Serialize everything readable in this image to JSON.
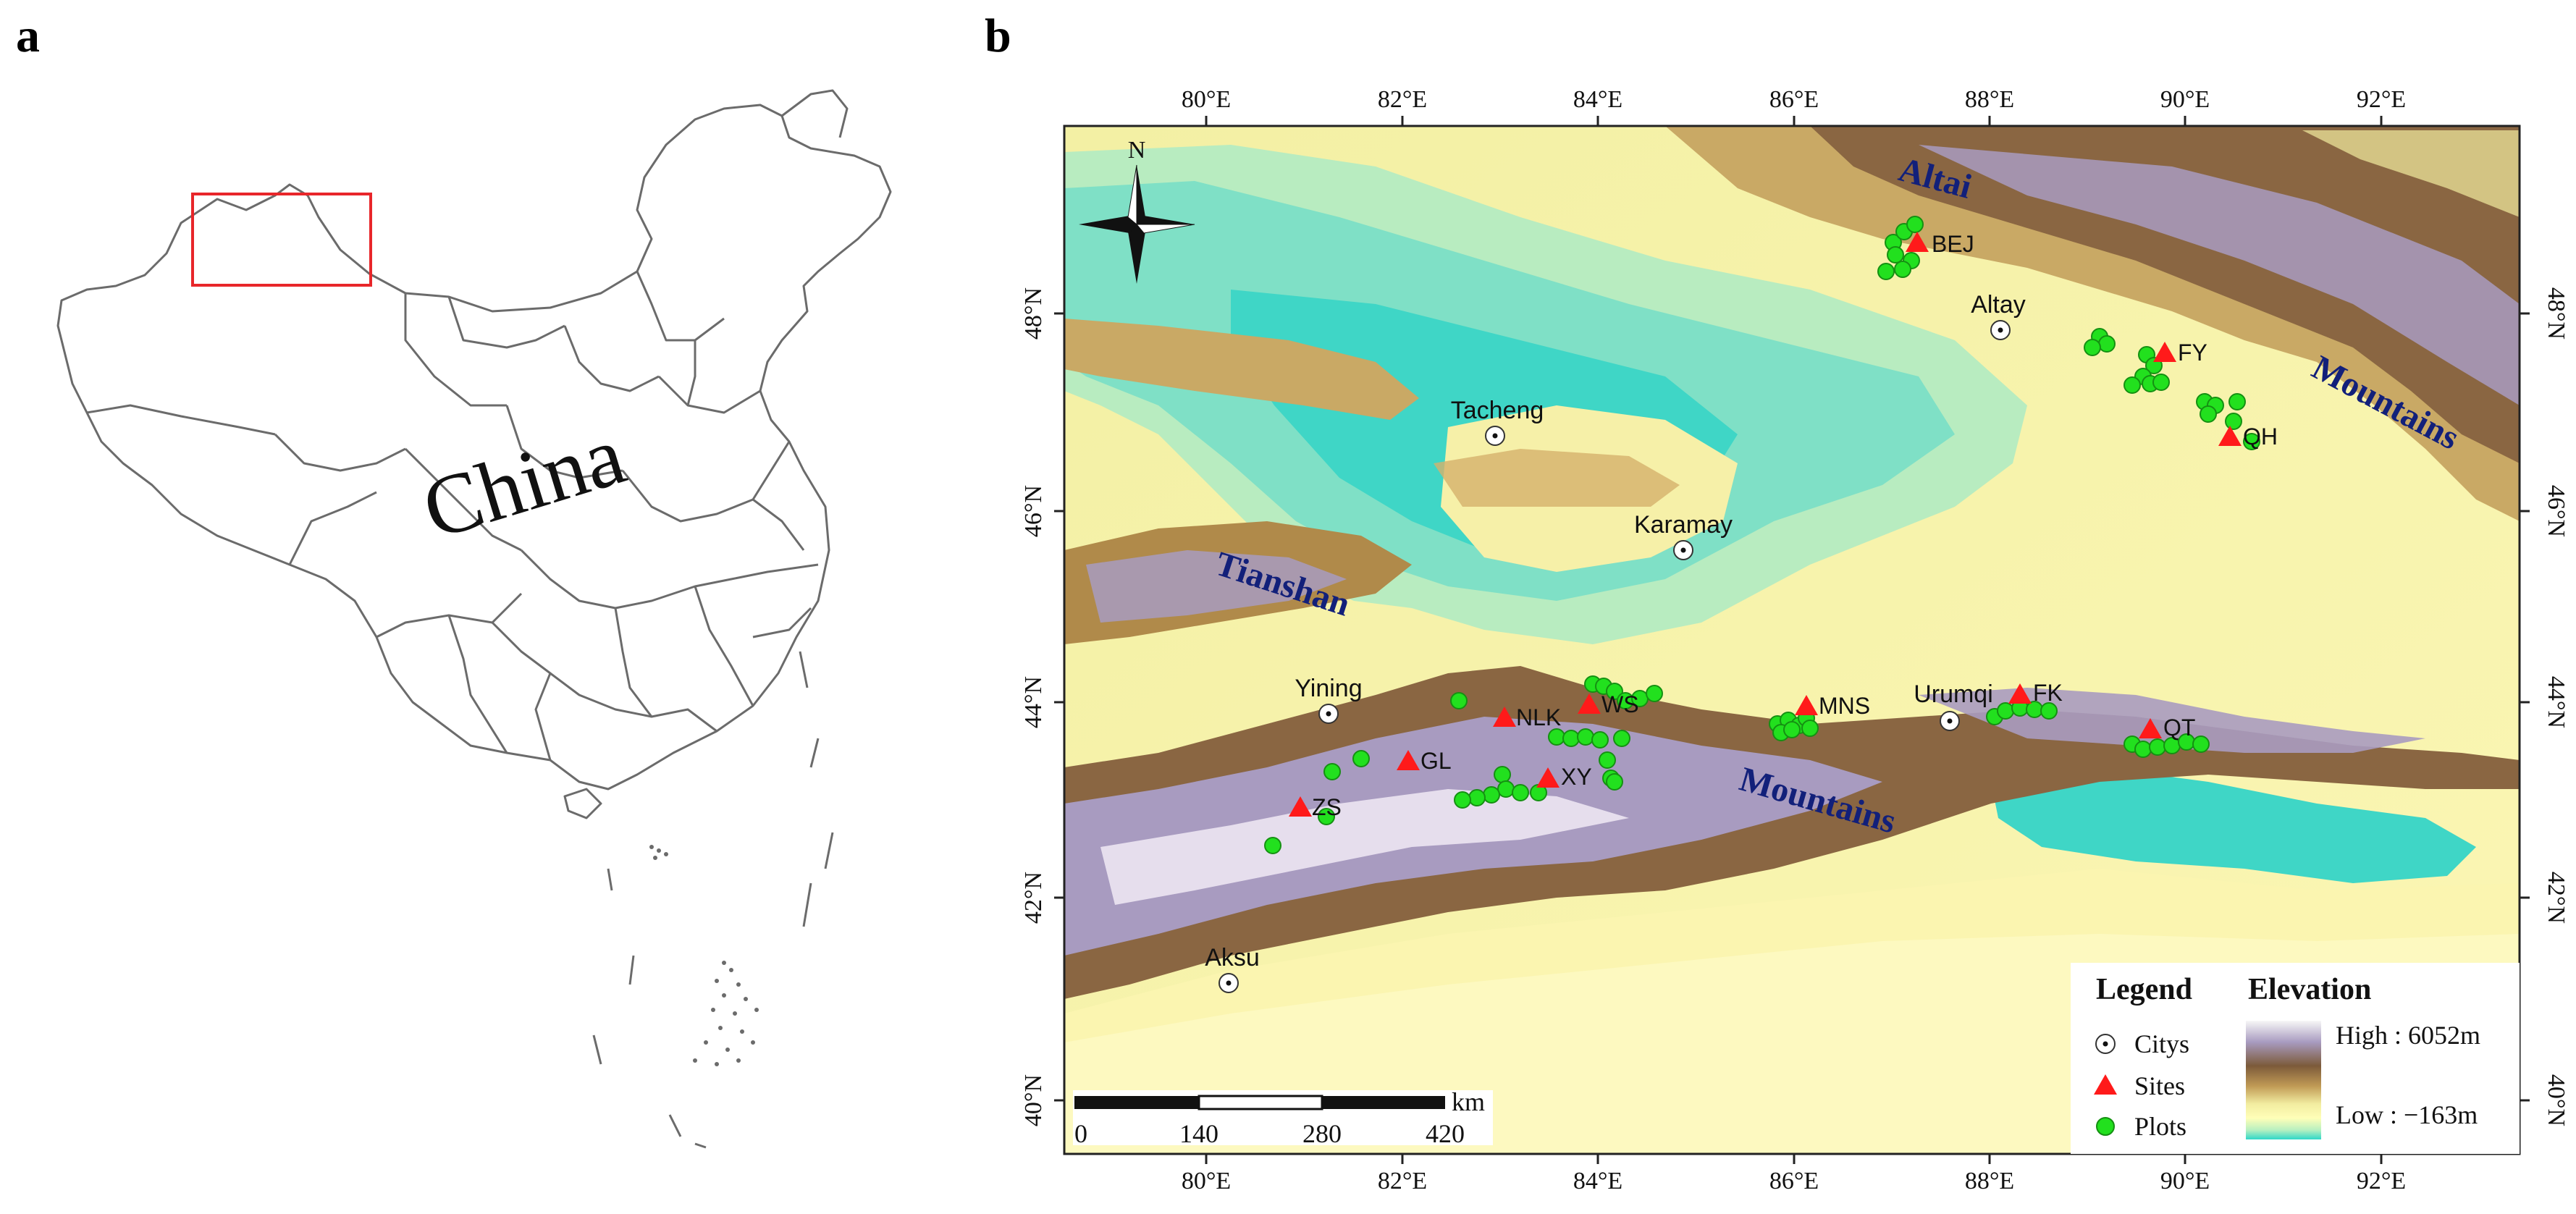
{
  "panels": {
    "a": {
      "letter": "a",
      "country_label": "China"
    },
    "b": {
      "letter": "b"
    }
  },
  "axes": {
    "lon_ticks": [
      "80°E",
      "82°E",
      "84°E",
      "86°E",
      "88°E",
      "90°E",
      "92°E"
    ],
    "lat_ticks": [
      "48°N",
      "46°N",
      "44°N",
      "42°N",
      "40°N"
    ]
  },
  "north_arrow": {
    "label": "N"
  },
  "mountain_ranges": [
    {
      "name": "altai",
      "text": "Altai"
    },
    {
      "name": "altai-mountains",
      "text": "Mountains"
    },
    {
      "name": "tianshan",
      "text": "Tianshan"
    },
    {
      "name": "tianshan-mountains",
      "text": "Mountains"
    }
  ],
  "cities": [
    "Altay",
    "Tacheng",
    "Karamay",
    "Yining",
    "Urumqi",
    "Aksu"
  ],
  "sites": [
    "BEJ",
    "FY",
    "QH",
    "WS",
    "NLK",
    "MNS",
    "FK",
    "QT",
    "GL",
    "XY",
    "ZS"
  ],
  "scale_bar": {
    "unit": "km",
    "labels": [
      "0",
      "140",
      "280",
      "420"
    ]
  },
  "legend": {
    "title": "Legend",
    "items": [
      {
        "symbol": "city",
        "label": "Citys"
      },
      {
        "symbol": "site",
        "label": "Sites"
      },
      {
        "symbol": "plot",
        "label": "Plots"
      }
    ],
    "elevation": {
      "title": "Elevation",
      "high": "High : 6052m",
      "low": "Low : −163m"
    }
  },
  "colors": {
    "site": "#ff1a1a",
    "plot": "#22e01e",
    "range_label": "#12207a",
    "locator_box": "#e8262a",
    "elevation_ramp": [
      "#f7f7f7",
      "#a89bc0",
      "#7c5a3a",
      "#b08a4a",
      "#f2eca0",
      "#ffffb8",
      "#b8f0c0",
      "#30d8c8"
    ]
  }
}
